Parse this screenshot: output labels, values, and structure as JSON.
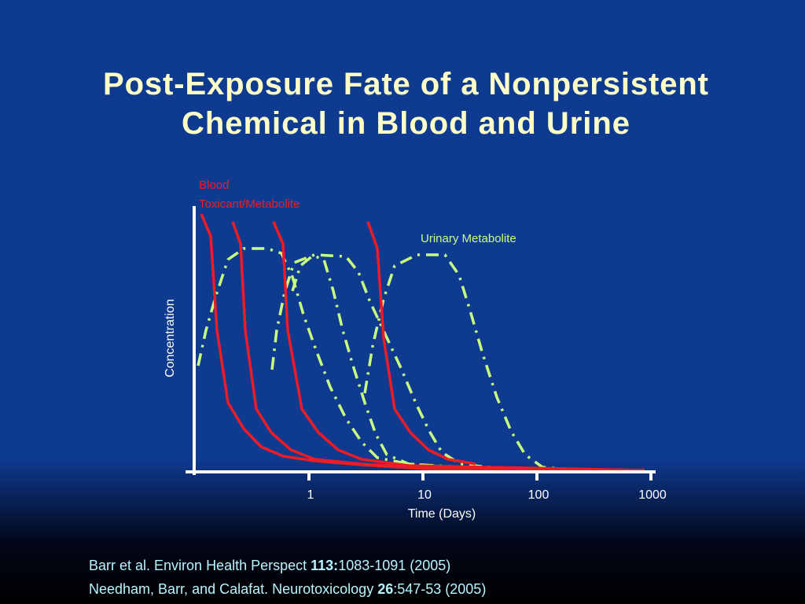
{
  "chart_data": {
    "type": "line",
    "title_lines": [
      "Post-Exposure Fate of a Nonpersistent",
      "Chemical in Blood and Urine"
    ],
    "blood_label_lines": [
      "Blood",
      "Toxicant/Metabolite"
    ],
    "urine_label": "Urinary Metabolite",
    "x_label": "Time (Days)",
    "y_label": "Concentration",
    "x_log": true,
    "xlim": [
      0.1,
      1000
    ],
    "xticks": [
      1,
      10,
      100,
      1000
    ]
  },
  "references": [
    [
      "Barr et al. Environ Health Perspect ",
      "113:",
      "1083-1091 (2005)"
    ],
    [
      "Needham, Barr, and Calafat. Neurotoxicology ",
      "26",
      ":547-53 (2005)"
    ]
  ]
}
